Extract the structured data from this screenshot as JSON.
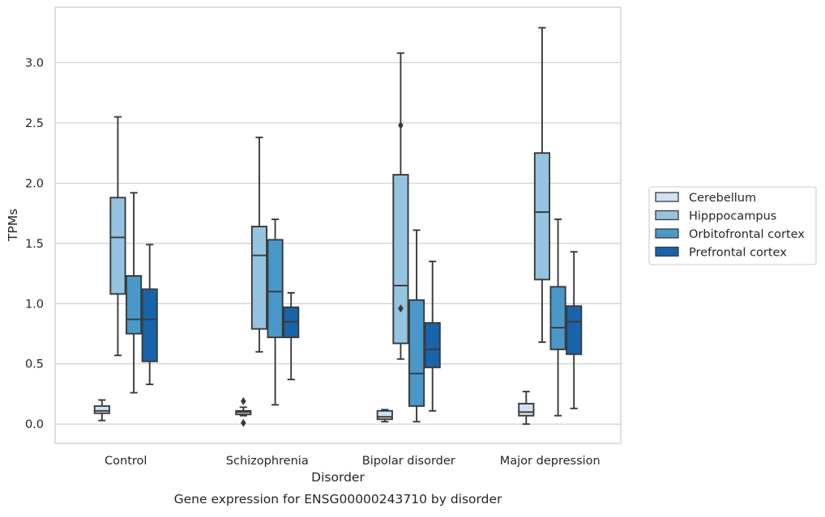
{
  "chart_data": {
    "type": "box",
    "title": "Gene expression for ENSG00000243710 by disorder",
    "xlabel": "Disorder",
    "ylabel": "TPMs",
    "ylim": [
      -0.16,
      3.46
    ],
    "yticks": [
      "0.0",
      "0.5",
      "1.0",
      "1.5",
      "2.0",
      "2.5",
      "3.0"
    ],
    "grid": true,
    "legend_position": "right",
    "categories": [
      "Control",
      "Schizophrenia",
      "Bipolar disorder",
      "Major depression"
    ],
    "series": [
      {
        "name": "Cerebellum",
        "color": "#d0e1f2",
        "boxes": [
          {
            "whislo": 0.03,
            "q1": 0.09,
            "med": 0.11,
            "q3": 0.15,
            "whishi": 0.2,
            "fliers": []
          },
          {
            "whislo": 0.07,
            "q1": 0.08,
            "med": 0.1,
            "q3": 0.11,
            "whishi": 0.14,
            "fliers": [
              0.19,
              0.01
            ]
          },
          {
            "whislo": 0.02,
            "q1": 0.04,
            "med": 0.06,
            "q3": 0.11,
            "whishi": 0.12,
            "fliers": []
          },
          {
            "whislo": 0.0,
            "q1": 0.07,
            "med": 0.1,
            "q3": 0.17,
            "whishi": 0.27,
            "fliers": []
          }
        ]
      },
      {
        "name": "Hipppocampus",
        "color": "#94c4df",
        "boxes": [
          {
            "whislo": 0.57,
            "q1": 1.08,
            "med": 1.55,
            "q3": 1.88,
            "whishi": 2.55,
            "fliers": []
          },
          {
            "whislo": 0.6,
            "q1": 0.79,
            "med": 1.4,
            "q3": 1.64,
            "whishi": 2.38,
            "fliers": []
          },
          {
            "whislo": 0.54,
            "q1": 0.67,
            "med": 1.15,
            "q3": 2.07,
            "whishi": 3.08,
            "fliers": [
              2.48,
              0.96
            ]
          },
          {
            "whislo": 0.68,
            "q1": 1.2,
            "med": 1.76,
            "q3": 2.25,
            "whishi": 3.29,
            "fliers": []
          }
        ]
      },
      {
        "name": "Orbitofrontal cortex",
        "color": "#4a98c9",
        "boxes": [
          {
            "whislo": 0.26,
            "q1": 0.75,
            "med": 0.87,
            "q3": 1.23,
            "whishi": 1.92,
            "fliers": []
          },
          {
            "whislo": 0.16,
            "q1": 0.72,
            "med": 1.1,
            "q3": 1.53,
            "whishi": 1.7,
            "fliers": []
          },
          {
            "whislo": 0.02,
            "q1": 0.15,
            "med": 0.42,
            "q3": 1.03,
            "whishi": 1.61,
            "fliers": []
          },
          {
            "whislo": 0.07,
            "q1": 0.62,
            "med": 0.8,
            "q3": 1.14,
            "whishi": 1.7,
            "fliers": []
          }
        ]
      },
      {
        "name": "Prefrontal cortex",
        "color": "#1764ab",
        "boxes": [
          {
            "whislo": 0.33,
            "q1": 0.52,
            "med": 0.87,
            "q3": 1.12,
            "whishi": 1.49,
            "fliers": []
          },
          {
            "whislo": 0.37,
            "q1": 0.72,
            "med": 0.85,
            "q3": 0.97,
            "whishi": 1.09,
            "fliers": []
          },
          {
            "whislo": 0.11,
            "q1": 0.47,
            "med": 0.62,
            "q3": 0.84,
            "whishi": 1.35,
            "fliers": []
          },
          {
            "whislo": 0.13,
            "q1": 0.58,
            "med": 0.85,
            "q3": 0.98,
            "whishi": 1.43,
            "fliers": []
          }
        ]
      }
    ]
  }
}
